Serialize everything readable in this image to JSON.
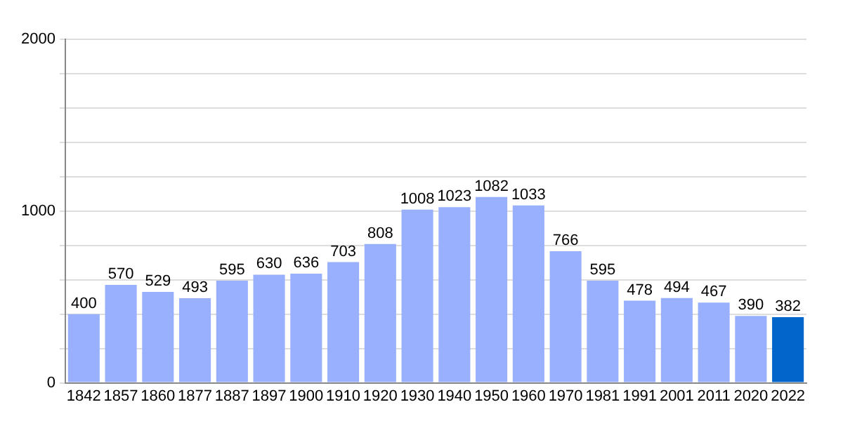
{
  "chart_data": {
    "type": "bar",
    "categories": [
      "1842",
      "1857",
      "1860",
      "1877",
      "1887",
      "1897",
      "1900",
      "1910",
      "1920",
      "1930",
      "1940",
      "1950",
      "1960",
      "1970",
      "1981",
      "1991",
      "2001",
      "2011",
      "2020",
      "2022"
    ],
    "values": [
      400,
      570,
      529,
      493,
      595,
      630,
      636,
      703,
      808,
      1008,
      1023,
      1082,
      1033,
      766,
      595,
      478,
      494,
      467,
      390,
      382
    ],
    "colors": [
      "#99b0ff",
      "#99b0ff",
      "#99b0ff",
      "#99b0ff",
      "#99b0ff",
      "#99b0ff",
      "#99b0ff",
      "#99b0ff",
      "#99b0ff",
      "#99b0ff",
      "#99b0ff",
      "#99b0ff",
      "#99b0ff",
      "#99b0ff",
      "#99b0ff",
      "#99b0ff",
      "#99b0ff",
      "#99b0ff",
      "#99b0ff",
      "#0066cc"
    ],
    "ylim": [
      0,
      2000
    ],
    "yticks": [
      0,
      {
        "value": 200,
        "label": null
      },
      {
        "value": 400,
        "label": null
      },
      {
        "value": 600,
        "label": null
      },
      {
        "value": 800,
        "label": null
      },
      1000,
      {
        "value": 1200,
        "label": null
      },
      {
        "value": 1400,
        "label": null
      },
      {
        "value": 1600,
        "label": null
      },
      {
        "value": 1800,
        "label": null
      },
      2000
    ],
    "grid": "y",
    "data_labels": true
  }
}
